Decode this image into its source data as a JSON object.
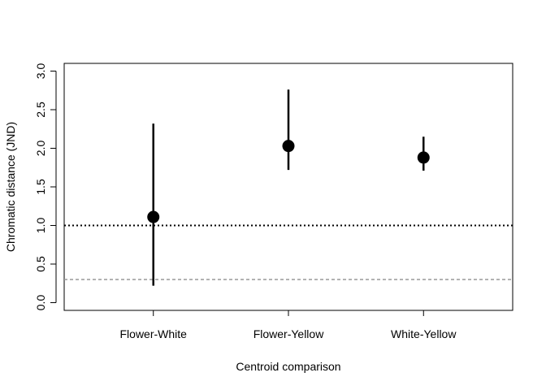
{
  "chart_data": {
    "type": "scatter",
    "subtype": "point-with-interval",
    "title": "",
    "xlabel": "Centroid comparison",
    "ylabel": "Chromatic distance (JND)",
    "categories": [
      "Flower-White",
      "Flower-Yellow",
      "White-Yellow"
    ],
    "estimates": [
      1.11,
      2.03,
      1.88
    ],
    "lower": [
      0.22,
      1.72,
      1.71
    ],
    "upper": [
      2.32,
      2.76,
      2.15
    ],
    "ylim": [
      -0.1,
      3.1
    ],
    "yticks": [
      0.0,
      0.5,
      1.0,
      1.5,
      2.0,
      2.5,
      3.0
    ],
    "ytick_labels": [
      "0.0",
      "0.5",
      "1.0",
      "1.5",
      "2.0",
      "2.5",
      "3.0"
    ],
    "reference_lines": [
      {
        "y": 1.0,
        "style": "dotted",
        "color": "#000000"
      },
      {
        "y": 0.3,
        "style": "dashed",
        "color": "#999999"
      }
    ],
    "point_color": "#000000",
    "grid": false,
    "legend": "none"
  }
}
